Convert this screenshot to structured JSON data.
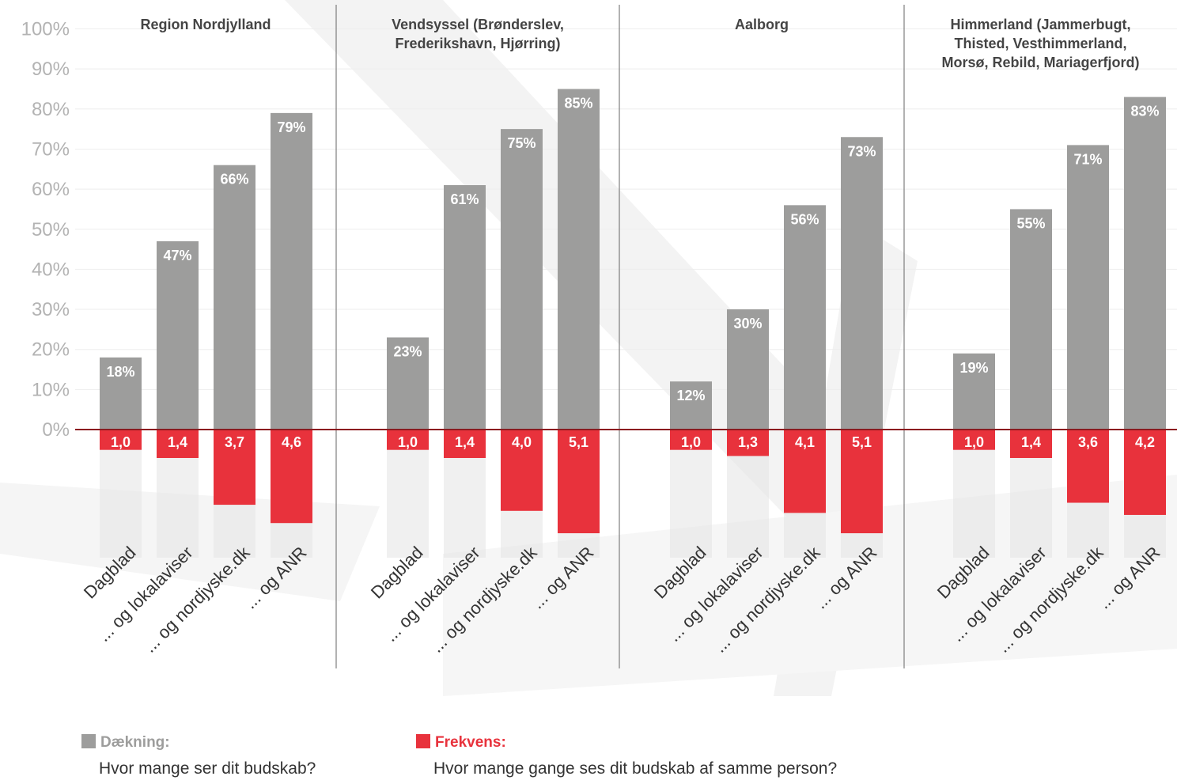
{
  "chart_data": {
    "type": "bar",
    "y_axis": {
      "ticks": [
        "0%",
        "10%",
        "20%",
        "30%",
        "40%",
        "50%",
        "60%",
        "70%",
        "80%",
        "90%",
        "100%"
      ],
      "range": [
        0,
        100
      ],
      "grid": true
    },
    "categories": [
      "Dagblad",
      "... og lokalaviser",
      "... og nordjyske.dk",
      "... og ANR"
    ],
    "panels": [
      {
        "title_lines": [
          "Region Nordjylland"
        ],
        "coverage": [
          18,
          47,
          66,
          79
        ],
        "coverage_labels": [
          "18%",
          "47%",
          "66%",
          "79%"
        ],
        "frequency": [
          1.0,
          1.4,
          3.7,
          4.6
        ],
        "frequency_labels": [
          "1,0",
          "1,4",
          "3,7",
          "4,6"
        ]
      },
      {
        "title_lines": [
          "Vendsyssel (Brønderslev,",
          "Frederikshavn, Hjørring)"
        ],
        "coverage": [
          23,
          61,
          75,
          85
        ],
        "coverage_labels": [
          "23%",
          "61%",
          "75%",
          "85%"
        ],
        "frequency": [
          1.0,
          1.4,
          4.0,
          5.1
        ],
        "frequency_labels": [
          "1,0",
          "1,4",
          "4,0",
          "5,1"
        ]
      },
      {
        "title_lines": [
          "Aalborg"
        ],
        "coverage": [
          12,
          30,
          56,
          73
        ],
        "coverage_labels": [
          "12%",
          "30%",
          "56%",
          "73%"
        ],
        "frequency": [
          1.0,
          1.3,
          4.1,
          5.1
        ],
        "frequency_labels": [
          "1,0",
          "1,3",
          "4,1",
          "5,1"
        ]
      },
      {
        "title_lines": [
          "Himmerland (Jammerbugt,",
          "Thisted, Vesthimmerland,",
          "Morsø, Rebild, Mariagerfjord)"
        ],
        "coverage": [
          19,
          55,
          71,
          83
        ],
        "coverage_labels": [
          "19%",
          "55%",
          "71%",
          "83%"
        ],
        "frequency": [
          1.0,
          1.4,
          3.6,
          4.2
        ],
        "frequency_labels": [
          "1,0",
          "1,4",
          "3,6",
          "4,2"
        ]
      }
    ],
    "series": [
      {
        "name": "Dækning:",
        "color": "#9d9d9c"
      },
      {
        "name": "Frekvens:",
        "color": "#e8323c"
      }
    ]
  },
  "legend": {
    "coverage_title": "Dækning:",
    "coverage_desc": "Hvor mange ser dit budskab?",
    "frequency_title": "Frekvens:",
    "frequency_desc": "Hvor mange gange ses dit budskab af samme person?"
  },
  "colors": {
    "coverage": "#9d9d9c",
    "frequency": "#e8323c",
    "baseline": "#8b1a1f",
    "axis_text": "#b3b3b3",
    "title_text": "#444444",
    "legend_coverage_text": "#9d9d9c",
    "legend_frequency_text": "#e8323c"
  }
}
